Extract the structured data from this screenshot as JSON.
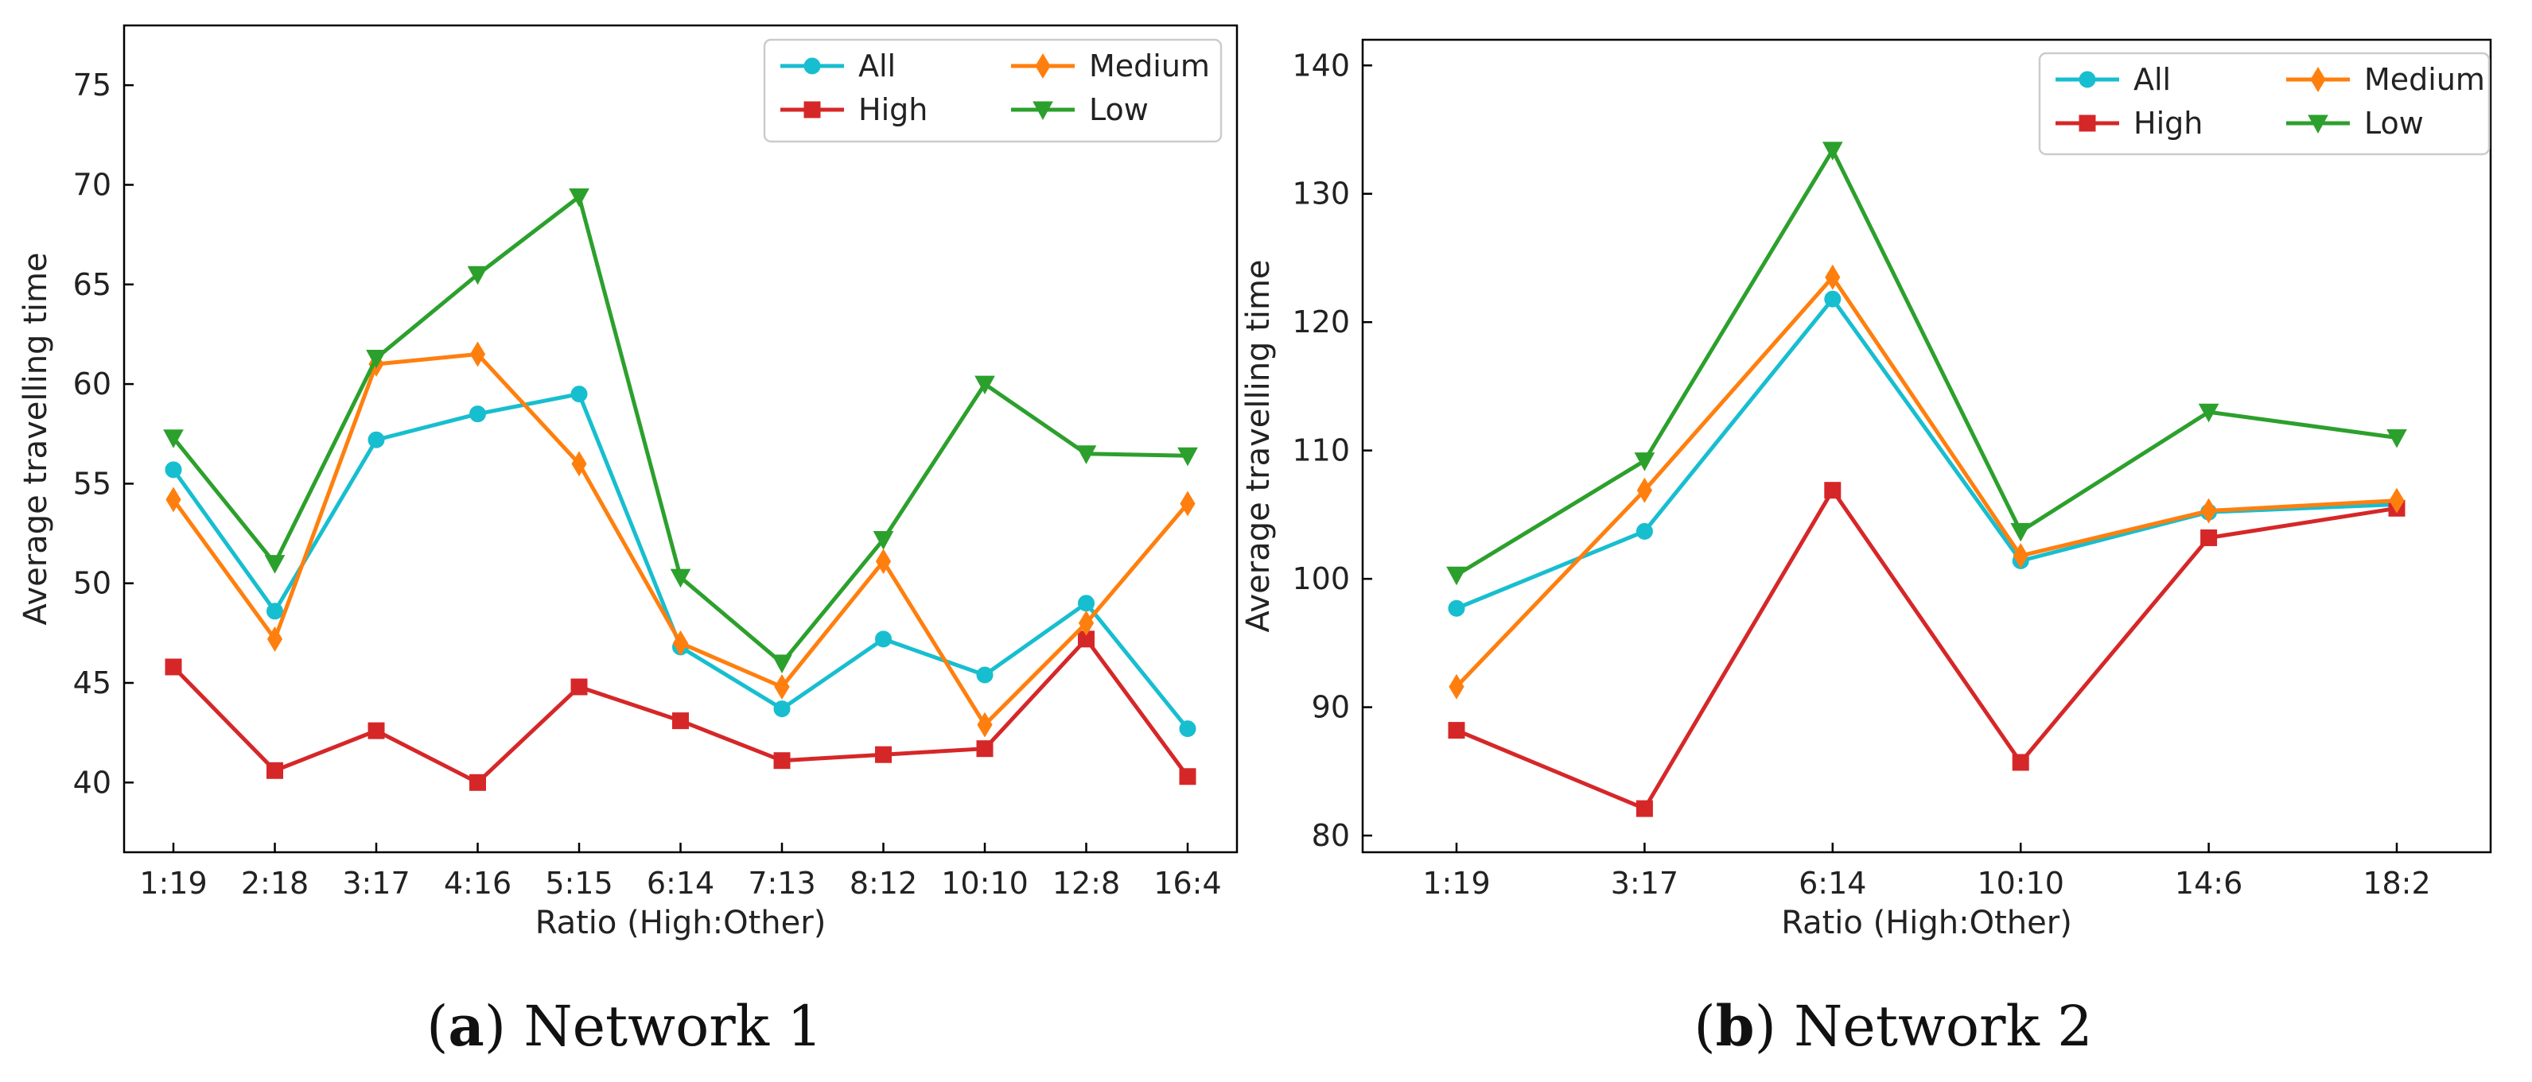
{
  "chart_data": [
    {
      "type": "line",
      "panel_letter": "a",
      "caption": "Network 1",
      "xlabel": "Ratio (High:Other)",
      "ylabel": "Average travelling time",
      "categories": [
        "1:19",
        "2:18",
        "3:17",
        "4:16",
        "5:15",
        "6:14",
        "7:13",
        "8:12",
        "10:10",
        "12:8",
        "16:4"
      ],
      "ylim": [
        36.5,
        78
      ],
      "yticks": [
        40,
        45,
        50,
        55,
        60,
        65,
        70,
        75
      ],
      "grid": false,
      "legend_position": "top-right",
      "series": [
        {
          "name": "All",
          "color": "#17becf",
          "marker": "circle",
          "values": [
            55.7,
            48.6,
            57.2,
            58.5,
            59.5,
            46.8,
            43.7,
            47.2,
            45.4,
            49.0,
            42.7
          ]
        },
        {
          "name": "High",
          "color": "#d62728",
          "marker": "square",
          "values": [
            45.8,
            40.6,
            42.6,
            40.0,
            44.8,
            43.1,
            41.1,
            41.4,
            41.7,
            47.2,
            40.3
          ]
        },
        {
          "name": "Medium",
          "color": "#ff7f0e",
          "marker": "diamond",
          "values": [
            54.2,
            47.2,
            61.0,
            61.5,
            56.0,
            47.0,
            44.8,
            51.1,
            42.9,
            48.0,
            54.0
          ]
        },
        {
          "name": "Low",
          "color": "#2ca02c",
          "marker": "triangle-down",
          "values": [
            57.3,
            51.0,
            61.3,
            65.5,
            69.4,
            50.3,
            46.0,
            52.2,
            60.0,
            56.5,
            56.4
          ]
        }
      ]
    },
    {
      "type": "line",
      "panel_letter": "b",
      "caption": "Network 2",
      "xlabel": "Ratio (High:Other)",
      "ylabel": "Average travelling time",
      "categories": [
        "1:19",
        "3:17",
        "6:14",
        "10:10",
        "14:6",
        "18:2"
      ],
      "ylim": [
        78.7,
        142
      ],
      "yticks": [
        80,
        90,
        100,
        110,
        120,
        130,
        140
      ],
      "grid": false,
      "legend_position": "top-right",
      "series": [
        {
          "name": "All",
          "color": "#17becf",
          "marker": "circle",
          "values": [
            97.7,
            103.7,
            121.8,
            101.4,
            105.2,
            105.8
          ]
        },
        {
          "name": "High",
          "color": "#d62728",
          "marker": "square",
          "values": [
            88.2,
            82.1,
            106.9,
            85.7,
            103.2,
            105.5
          ]
        },
        {
          "name": "Medium",
          "color": "#ff7f0e",
          "marker": "diamond",
          "values": [
            91.6,
            106.9,
            123.5,
            101.8,
            105.3,
            106.1
          ]
        },
        {
          "name": "Low",
          "color": "#2ca02c",
          "marker": "triangle-down",
          "values": [
            100.3,
            109.2,
            133.4,
            103.7,
            113.0,
            111.0
          ]
        }
      ]
    }
  ]
}
